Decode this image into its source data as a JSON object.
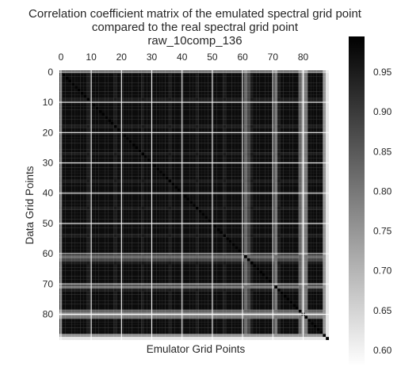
{
  "chart_data": {
    "type": "heatmap",
    "title": [
      "Correlation coefficient matrix of the emulated spectral grid point",
      "compared to the real spectral grid point",
      "raw_10comp_136"
    ],
    "xlabel": "Emulator Grid Points",
    "ylabel": "Data Grid Points",
    "n_rows": 89,
    "n_cols": 89,
    "xticks": [
      0,
      10,
      20,
      30,
      40,
      50,
      60,
      70,
      80
    ],
    "yticks": [
      0,
      10,
      20,
      30,
      40,
      50,
      60,
      70,
      80
    ],
    "x_tick_position": "top",
    "grid": true,
    "colormap": "gray_r",
    "colorbar": {
      "min": 0.58,
      "max": 0.995,
      "ticks": [
        "0.60",
        "0.65",
        "0.70",
        "0.75",
        "0.80",
        "0.85",
        "0.90",
        "0.95"
      ]
    },
    "block_size": 9,
    "typical_value": 0.975,
    "block_boundary_value": 0.95,
    "diagonal_value": 0.995,
    "low_bands": [
      {
        "index": 61,
        "value": 0.82
      },
      {
        "index": 62,
        "value": 0.88
      },
      {
        "index": 71,
        "value": 0.8
      },
      {
        "index": 79,
        "value": 0.83
      },
      {
        "index": 80,
        "value": 0.75
      },
      {
        "index": 81,
        "value": 0.8
      },
      {
        "index": 87,
        "value": 0.75
      },
      {
        "index": 88,
        "value": 0.62
      }
    ],
    "bottom_corner_values": [
      0.97,
      0.91,
      0.83,
      0.72,
      0.62
    ],
    "colors": {
      "dark": "#000000",
      "light": "#ffffff",
      "grid": "#ffffff",
      "text": "#262626"
    }
  }
}
